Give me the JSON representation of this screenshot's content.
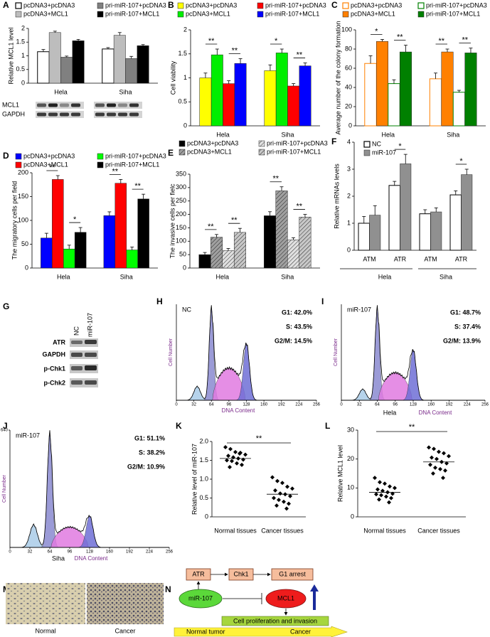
{
  "chart_data": [
    {
      "type": "bar",
      "label": "A",
      "ylabel": "Relative MCL1 level",
      "categories": [
        "Hela",
        "Siha"
      ],
      "ylim": [
        0,
        2
      ],
      "yticks": [
        0,
        0.5,
        1,
        1.5,
        2
      ],
      "series": [
        {
          "name": "pcDNA3+pcDNA3",
          "color": "#ffffff",
          "edge": "#000000",
          "values": [
            1.15,
            1.25
          ],
          "errors": [
            0.08,
            0.05
          ]
        },
        {
          "name": "pcDNA3+MCL1",
          "color": "#bdbdbd",
          "values": [
            1.85,
            1.75
          ],
          "errors": [
            0.05,
            0.1
          ]
        },
        {
          "name": "pri-miR-107+pcDNA3",
          "color": "#808080",
          "values": [
            0.95,
            0.9
          ],
          "errors": [
            0.04,
            0.08
          ]
        },
        {
          "name": "pri-miR-107+MCL1",
          "color": "#000000",
          "values": [
            1.55,
            1.37
          ],
          "errors": [
            0.05,
            0.04
          ]
        }
      ],
      "blot_labels": [
        "MCL1",
        "GAPDH"
      ],
      "annotations": []
    },
    {
      "type": "bar",
      "label": "B",
      "ylabel": "Cell viability",
      "categories": [
        "Hela",
        "Siha"
      ],
      "ylim": [
        0,
        2
      ],
      "yticks": [
        0,
        0.5,
        1,
        1.5,
        2
      ],
      "series": [
        {
          "name": "pcDNA3+pcDNA3",
          "color": "#ffff00",
          "values": [
            1.0,
            1.15
          ],
          "errors": [
            0.1,
            0.12
          ]
        },
        {
          "name": "pcDNA3+MCL1",
          "color": "#00ee00",
          "values": [
            1.48,
            1.52
          ],
          "errors": [
            0.12,
            0.08
          ]
        },
        {
          "name": "pri-miR-107+pcDNA3",
          "color": "#ff0000",
          "values": [
            0.88,
            0.83
          ],
          "errors": [
            0.06,
            0.05
          ]
        },
        {
          "name": "pri-miR-107+MCL1",
          "color": "#0000ff",
          "values": [
            1.3,
            1.25
          ],
          "errors": [
            0.1,
            0.06
          ]
        }
      ],
      "annotations": [
        "**",
        "**",
        "*",
        "**"
      ]
    },
    {
      "type": "bar",
      "label": "C",
      "ylabel": "Average number of the colony formation",
      "categories": [
        "Hela",
        "Siha"
      ],
      "ylim": [
        0,
        100
      ],
      "yticks": [
        0,
        20,
        40,
        60,
        80,
        100
      ],
      "series": [
        {
          "name": "pcDNA3+pcDNA3",
          "color": "#ffffff",
          "edge": "#ff8000",
          "values": [
            65,
            49
          ],
          "errors": [
            8,
            6
          ]
        },
        {
          "name": "pcDNA3+MCL1",
          "color": "#ff8000",
          "values": [
            88,
            77
          ],
          "errors": [
            2,
            3
          ]
        },
        {
          "name": "pri-miR-107+pcDNA3",
          "color": "#ffffff",
          "edge": "#008000",
          "values": [
            44,
            35
          ],
          "errors": [
            4,
            2
          ]
        },
        {
          "name": "pri-miR-107+MCL1",
          "color": "#008000",
          "values": [
            77,
            76
          ],
          "errors": [
            7,
            5
          ]
        }
      ],
      "annotations": [
        "*",
        "**",
        "**",
        "**"
      ]
    },
    {
      "type": "bar",
      "label": "D",
      "ylabel": "The migratory cells per field",
      "categories": [
        "Hela",
        "Siha"
      ],
      "ylim": [
        0,
        200
      ],
      "yticks": [
        0,
        50,
        100,
        150,
        200
      ],
      "series": [
        {
          "name": "pcDNA3+pcDNA3",
          "color": "#0000ff",
          "values": [
            63,
            110
          ],
          "errors": [
            10,
            8
          ]
        },
        {
          "name": "pcDNA3+MCL1",
          "color": "#ff0000",
          "values": [
            186,
            178
          ],
          "errors": [
            8,
            8
          ]
        },
        {
          "name": "pri-miR-107+pcDNA3",
          "color": "#00ff00",
          "values": [
            40,
            38
          ],
          "errors": [
            8,
            6
          ]
        },
        {
          "name": "pri-miR-107+MCL1",
          "color": "#000000",
          "values": [
            75,
            145
          ],
          "errors": [
            10,
            10
          ]
        }
      ],
      "annotations": [
        "**",
        "*",
        "**",
        "**"
      ]
    },
    {
      "type": "bar",
      "label": "E",
      "ylabel": "The invasive cells per fielc",
      "categories": [
        "Hela",
        "Siha"
      ],
      "ylim": [
        0,
        350
      ],
      "yticks": [
        0,
        50,
        100,
        150,
        200,
        250,
        300,
        350
      ],
      "series": [
        {
          "name": "pcDNA3+pcDNA3",
          "color": "#000000",
          "values": [
            50,
            195
          ],
          "errors": [
            8,
            15
          ]
        },
        {
          "name": "pcDNA3+MCL1",
          "color": "#a0a0a0",
          "pattern": "hatch",
          "values": [
            115,
            288
          ],
          "errors": [
            10,
            15
          ]
        },
        {
          "name": "pri-miR-107+pcDNA3",
          "color": "#e0e0e0",
          "pattern": "hatch",
          "values": [
            65,
            105
          ],
          "errors": [
            8,
            8
          ]
        },
        {
          "name": "pri-miR-107+MCL1",
          "color": "#c8c8c8",
          "pattern": "hatch",
          "values": [
            133,
            190
          ],
          "errors": [
            15,
            10
          ]
        }
      ],
      "annotations": [
        "**",
        "**",
        "**",
        "**"
      ]
    },
    {
      "type": "bar",
      "label": "F",
      "ylabel": "Relative mRNAs levels",
      "categories": [
        "ATM",
        "ATR",
        "ATM",
        "ATR"
      ],
      "groups": [
        "Hela",
        "Siha"
      ],
      "ylim": [
        0,
        4
      ],
      "yticks": [
        0,
        1,
        2,
        3,
        4
      ],
      "series": [
        {
          "name": "NC",
          "color": "#ffffff",
          "edge": "#000000",
          "values": [
            1.0,
            2.4,
            1.35,
            2.05
          ],
          "errors": [
            0.25,
            0.15,
            0.15,
            0.15
          ]
        },
        {
          "name": "miR-107",
          "color": "#909090",
          "values": [
            1.3,
            3.2,
            1.42,
            2.8
          ],
          "errors": [
            0.35,
            0.35,
            0.15,
            0.2
          ]
        }
      ],
      "annotations": [
        "*",
        "*"
      ]
    },
    {
      "type": "cytometry",
      "label": "H",
      "title": "NC",
      "stats": [
        "G1: 42.0%",
        "S: 43.5%",
        "G2/M: 14.5%"
      ],
      "xlabel": "DNA Content",
      "ylabel": "Cell Number",
      "xlim": [
        0,
        256
      ],
      "xticks": [
        0,
        32,
        64,
        96,
        128,
        160,
        192,
        224,
        256
      ]
    },
    {
      "type": "cytometry",
      "label": "I",
      "title": "miR-107",
      "stats": [
        "G1: 48.7%",
        "S: 37.4%",
        "G2/M: 13.9%"
      ],
      "subtitle": "Hela",
      "xlabel": "DNA Content",
      "ylabel": "Cell Number",
      "xlim": [
        0,
        256
      ],
      "xticks": [
        0,
        32,
        64,
        96,
        128,
        160,
        192,
        224,
        256
      ]
    },
    {
      "type": "cytometry",
      "label": "J",
      "title": "miR-107",
      "stats": [
        "G1: 51.1%",
        "S: 38.2%",
        "G2/M: 10.9%"
      ],
      "subtitle": "Siha",
      "xlabel": "DNA Content",
      "ylabel": "Cell Number",
      "xlim": [
        0,
        256
      ],
      "xticks": [
        0,
        32,
        64,
        96,
        128,
        160,
        192,
        224,
        256
      ],
      "ylim": [
        0,
        640
      ],
      "yticks": [
        640
      ]
    },
    {
      "type": "strip",
      "label": "K",
      "ylabel": "Relative level of miR-107",
      "categories": [
        "Normal tissues",
        "Cancer tissues"
      ],
      "ylim": [
        0,
        2
      ],
      "yticks": [
        0,
        0.5,
        {
          "value": 1,
          "label": "1.0"
        },
        1.5,
        {
          "value": 2,
          "label": "2.0"
        }
      ],
      "values": [
        [
          1.85,
          1.8,
          1.72,
          1.7,
          1.65,
          1.62,
          1.58,
          1.55,
          1.52,
          1.5,
          1.48,
          1.42,
          1.38,
          1.32,
          1.68
        ],
        [
          1.05,
          0.95,
          0.9,
          0.8,
          0.75,
          0.7,
          0.62,
          0.6,
          0.55,
          0.5,
          0.45,
          0.4,
          0.35,
          0.3,
          0.22
        ]
      ],
      "means": [
        1.55,
        0.6
      ],
      "annotations": [
        "**"
      ]
    },
    {
      "type": "strip",
      "label": "L",
      "ylabel": "Relative MCL1 level",
      "categories": [
        "Normal tissues",
        "Cancer tissues"
      ],
      "ylim": [
        0,
        30
      ],
      "yticks": [
        0,
        10,
        20,
        30
      ],
      "values": [
        [
          13.5,
          12,
          11.5,
          10.5,
          10,
          9.5,
          9,
          8.5,
          8,
          7.8,
          7.5,
          7,
          6.5,
          6,
          5
        ],
        [
          24,
          23.5,
          22.5,
          22,
          21,
          20.5,
          20,
          19,
          18.5,
          18,
          17,
          16.5,
          16,
          15,
          13.5
        ]
      ],
      "means": [
        8.5,
        19
      ],
      "annotations": [
        "**"
      ]
    }
  ],
  "western_blot": {
    "label": "G",
    "lanes": [
      "NC",
      "miR-107"
    ],
    "proteins": [
      "ATR",
      "GAPDH",
      "p-Chk1",
      "p-Chk2"
    ]
  },
  "micrographs": {
    "label": "M",
    "captions": [
      "Normal",
      "Cancer"
    ]
  },
  "diagram": {
    "label": "N",
    "nodes": [
      "ATR",
      "Chk1",
      "G1 arrest",
      "miR-107",
      "MCL1",
      "Cell proliferation and invasion"
    ],
    "arrow_labels": [
      "Normal tumor",
      "Cancer"
    ]
  }
}
